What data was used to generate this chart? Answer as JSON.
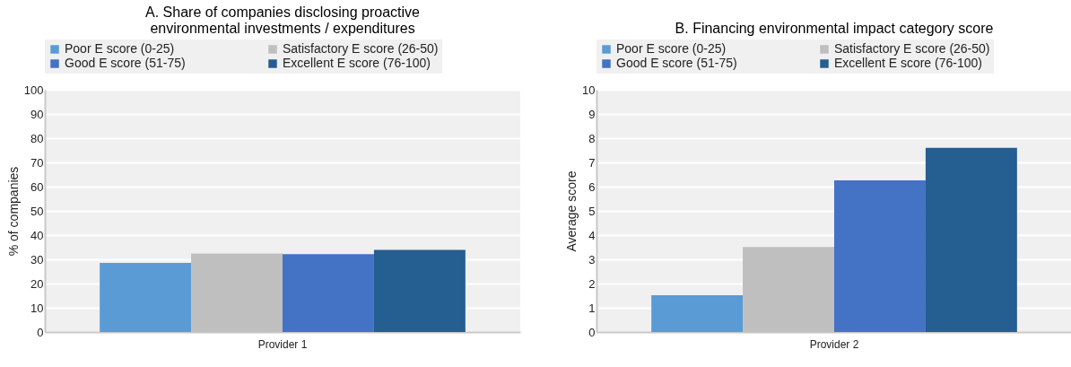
{
  "chart_data": [
    {
      "type": "bar",
      "title": "A. Share of companies disclosing proactive environmental investments / expenditures",
      "ylabel": "% of companies",
      "categories": [
        "Provider 1"
      ],
      "ylim": [
        0,
        100
      ],
      "yticks": [
        0,
        10,
        20,
        30,
        40,
        50,
        60,
        70,
        80,
        90,
        100
      ],
      "grid": "y",
      "legend": "top",
      "series": [
        {
          "name": "Poor E score (0-25)",
          "color": "#5b9bd5",
          "values": [
            28.5
          ]
        },
        {
          "name": "Satisfactory E score (26-50)",
          "color": "#bfbfbf",
          "values": [
            32.4
          ]
        },
        {
          "name": "Good E score (51-75)",
          "color": "#4472c4",
          "values": [
            32.1
          ]
        },
        {
          "name": "Excellent E score (76-100)",
          "color": "#255e91",
          "values": [
            33.9
          ]
        }
      ]
    },
    {
      "type": "bar",
      "title": "B. Financing environmental impact category score",
      "ylabel": "Average score",
      "categories": [
        "Provider 2"
      ],
      "ylim": [
        0,
        10
      ],
      "yticks": [
        0,
        1,
        2,
        3,
        4,
        5,
        6,
        7,
        8,
        9,
        10
      ],
      "grid": "y",
      "legend": "top",
      "series": [
        {
          "name": "Poor E score (0-25)",
          "color": "#5b9bd5",
          "values": [
            1.52
          ]
        },
        {
          "name": "Satisfactory E score (26-50)",
          "color": "#bfbfbf",
          "values": [
            3.51
          ]
        },
        {
          "name": "Good E score (51-75)",
          "color": "#4472c4",
          "values": [
            6.26
          ]
        },
        {
          "name": "Excellent E score (76-100)",
          "color": "#255e91",
          "values": [
            7.6
          ]
        }
      ]
    }
  ]
}
